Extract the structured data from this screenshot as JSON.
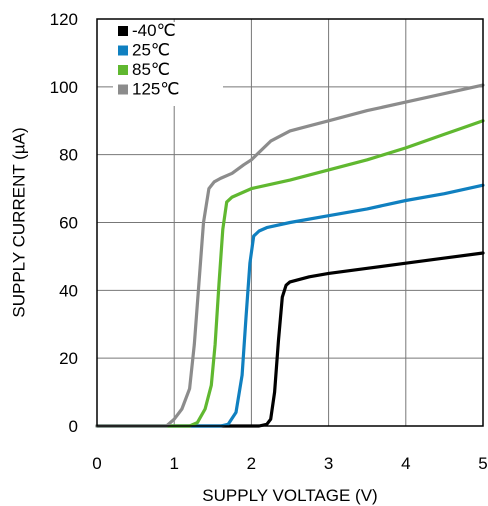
{
  "chart_data": {
    "type": "line",
    "xlabel": "SUPPLY VOLTAGE (V)",
    "ylabel": "SUPPLY CURRENT (µA)",
    "xlim": [
      0,
      5
    ],
    "ylim": [
      0,
      120
    ],
    "xticks": [
      0,
      1,
      2,
      3,
      4,
      5
    ],
    "yticks": [
      0,
      20,
      40,
      60,
      80,
      100,
      120
    ],
    "grid": true,
    "legend_position": "top-left",
    "series": [
      {
        "name": "-40℃",
        "color": "#000000",
        "points": [
          [
            0,
            0
          ],
          [
            2.1,
            0
          ],
          [
            2.2,
            0.5
          ],
          [
            2.25,
            2
          ],
          [
            2.3,
            10
          ],
          [
            2.35,
            25
          ],
          [
            2.4,
            38
          ],
          [
            2.45,
            41.5
          ],
          [
            2.5,
            42.5
          ],
          [
            2.75,
            44
          ],
          [
            3,
            45
          ],
          [
            3.5,
            46.5
          ],
          [
            4,
            48
          ],
          [
            4.5,
            49.5
          ],
          [
            5,
            51
          ]
        ]
      },
      {
        "name": "25℃",
        "color": "#1080c0",
        "points": [
          [
            0,
            0
          ],
          [
            1.6,
            0
          ],
          [
            1.7,
            0.5
          ],
          [
            1.8,
            4
          ],
          [
            1.88,
            15
          ],
          [
            1.93,
            32
          ],
          [
            1.98,
            48
          ],
          [
            2.03,
            56
          ],
          [
            2.1,
            57.5
          ],
          [
            2.2,
            58.5
          ],
          [
            2.5,
            60
          ],
          [
            3,
            62
          ],
          [
            3.5,
            64
          ],
          [
            4,
            66.5
          ],
          [
            4.5,
            68.5
          ],
          [
            5,
            71
          ]
        ]
      },
      {
        "name": "85℃",
        "color": "#60b830",
        "points": [
          [
            0,
            0
          ],
          [
            1.2,
            0
          ],
          [
            1.3,
            1
          ],
          [
            1.4,
            5
          ],
          [
            1.48,
            12
          ],
          [
            1.53,
            24
          ],
          [
            1.58,
            42
          ],
          [
            1.63,
            58
          ],
          [
            1.68,
            66
          ],
          [
            1.75,
            67.5
          ],
          [
            1.9,
            69
          ],
          [
            2,
            70
          ],
          [
            2.5,
            72.5
          ],
          [
            3,
            75.5
          ],
          [
            3.5,
            78.5
          ],
          [
            4,
            82
          ],
          [
            4.5,
            86
          ],
          [
            5,
            90
          ]
        ]
      },
      {
        "name": "125℃",
        "color": "#8c8c8c",
        "points": [
          [
            0,
            0
          ],
          [
            0.9,
            0
          ],
          [
            1,
            2
          ],
          [
            1.1,
            5
          ],
          [
            1.2,
            11
          ],
          [
            1.26,
            24
          ],
          [
            1.32,
            42
          ],
          [
            1.38,
            60
          ],
          [
            1.45,
            70
          ],
          [
            1.52,
            72
          ],
          [
            1.6,
            73
          ],
          [
            1.75,
            74.5
          ],
          [
            1.9,
            77
          ],
          [
            2,
            78.5
          ],
          [
            2.25,
            84
          ],
          [
            2.5,
            87
          ],
          [
            3,
            90
          ],
          [
            3.5,
            93
          ],
          [
            4,
            95.5
          ],
          [
            4.5,
            98
          ],
          [
            5,
            100.5
          ]
        ]
      }
    ]
  }
}
